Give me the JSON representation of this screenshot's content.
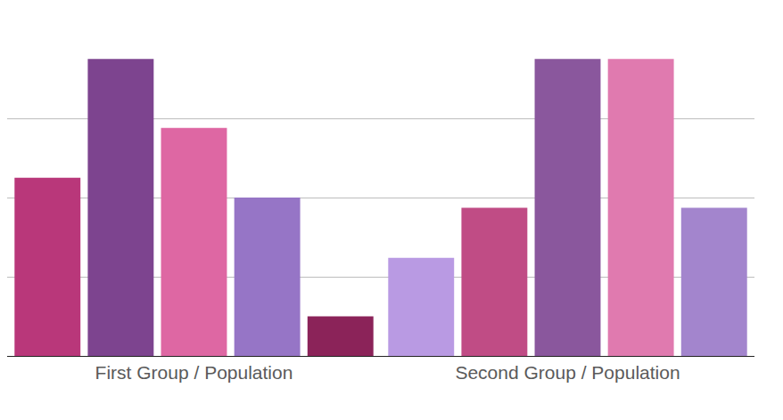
{
  "chart_data": {
    "type": "bar",
    "categories": [
      "First Group / Population",
      "Second Group / Population"
    ],
    "series": [
      {
        "colors": [
          "#b9377a",
          "#b99ae3"
        ],
        "values": [
          22.5,
          12.4
        ]
      },
      {
        "colors": [
          "#7d448f",
          "#c04c85"
        ],
        "values": [
          37.5,
          18.7
        ]
      },
      {
        "colors": [
          "#de67a3",
          "#8a579d"
        ],
        "values": [
          28.8,
          37.5
        ]
      },
      {
        "colors": [
          "#9675c6",
          "#e07aaf"
        ],
        "values": [
          20,
          37.5
        ]
      },
      {
        "colors": [
          "#8b2359",
          "#a385cd"
        ],
        "values": [
          5,
          18.7
        ]
      }
    ],
    "ylim": [
      0,
      40
    ],
    "yticks": [
      0,
      10,
      20,
      30,
      40
    ],
    "grid": true,
    "tick_labels": "x"
  }
}
